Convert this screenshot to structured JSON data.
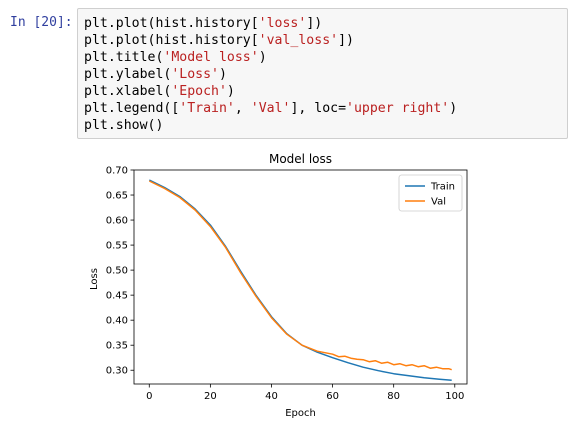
{
  "cell": {
    "prompt": "In [20]:",
    "code_lines": [
      [
        {
          "t": "plt.plot(hist.history[",
          "s": false
        },
        {
          "t": "'loss'",
          "s": true
        },
        {
          "t": "])",
          "s": false
        }
      ],
      [
        {
          "t": "plt.plot(hist.history[",
          "s": false
        },
        {
          "t": "'val_loss'",
          "s": true
        },
        {
          "t": "])",
          "s": false
        }
      ],
      [
        {
          "t": "plt.title(",
          "s": false
        },
        {
          "t": "'Model loss'",
          "s": true
        },
        {
          "t": ")",
          "s": false
        }
      ],
      [
        {
          "t": "plt.ylabel(",
          "s": false
        },
        {
          "t": "'Loss'",
          "s": true
        },
        {
          "t": ")",
          "s": false
        }
      ],
      [
        {
          "t": "plt.xlabel(",
          "s": false
        },
        {
          "t": "'Epoch'",
          "s": true
        },
        {
          "t": ")",
          "s": false
        }
      ],
      [
        {
          "t": "plt.legend([",
          "s": false
        },
        {
          "t": "'Train'",
          "s": true
        },
        {
          "t": ", ",
          "s": false
        },
        {
          "t": "'Val'",
          "s": true
        },
        {
          "t": "], loc=",
          "s": false
        },
        {
          "t": "'upper right'",
          "s": true
        },
        {
          "t": ")",
          "s": false
        }
      ],
      [
        {
          "t": "plt.show()",
          "s": false
        }
      ]
    ]
  },
  "chart_data": {
    "type": "line",
    "title": "Model loss",
    "xlabel": "Epoch",
    "ylabel": "Loss",
    "xlim": [
      -5,
      104
    ],
    "ylim": [
      0.2725,
      0.7
    ],
    "xticks": [
      0,
      20,
      40,
      60,
      80,
      100
    ],
    "yticks": [
      0.3,
      0.35,
      0.4,
      0.45,
      0.5,
      0.55,
      0.6,
      0.65,
      0.7
    ],
    "ytick_labels": [
      "0.30",
      "0.35",
      "0.40",
      "0.45",
      "0.50",
      "0.55",
      "0.60",
      "0.65",
      "0.70"
    ],
    "xtick_labels": [
      "0",
      "20",
      "40",
      "60",
      "80",
      "100"
    ],
    "legend_position": "upper right",
    "grid": false,
    "series": [
      {
        "name": "Train",
        "color": "#1f77b4",
        "x": [
          0,
          5,
          10,
          15,
          20,
          25,
          30,
          35,
          40,
          45,
          50,
          55,
          60,
          65,
          70,
          75,
          80,
          85,
          90,
          95,
          99
        ],
        "y": [
          0.68,
          0.665,
          0.647,
          0.622,
          0.59,
          0.547,
          0.497,
          0.449,
          0.407,
          0.373,
          0.35,
          0.336,
          0.325,
          0.315,
          0.306,
          0.299,
          0.293,
          0.289,
          0.285,
          0.282,
          0.28
        ]
      },
      {
        "name": "Val",
        "color": "#ff7f0e",
        "x": [
          0,
          5,
          10,
          15,
          20,
          25,
          30,
          35,
          40,
          45,
          50,
          55,
          60,
          62,
          64,
          66,
          68,
          70,
          72,
          74,
          76,
          78,
          80,
          82,
          84,
          86,
          88,
          90,
          92,
          94,
          96,
          98,
          99
        ],
        "y": [
          0.678,
          0.663,
          0.645,
          0.62,
          0.587,
          0.545,
          0.494,
          0.447,
          0.405,
          0.372,
          0.35,
          0.338,
          0.332,
          0.327,
          0.328,
          0.324,
          0.322,
          0.321,
          0.317,
          0.319,
          0.314,
          0.316,
          0.311,
          0.313,
          0.309,
          0.311,
          0.307,
          0.309,
          0.304,
          0.306,
          0.303,
          0.303,
          0.301
        ]
      }
    ]
  }
}
